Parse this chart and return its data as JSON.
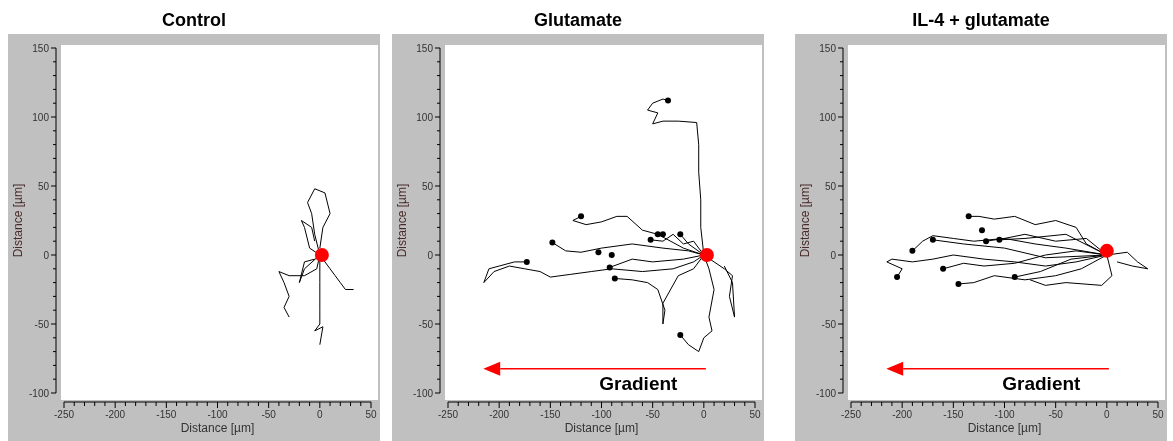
{
  "chart_data": [
    {
      "type": "line",
      "title": "Control",
      "xlabel": "Distance [µm]",
      "ylabel": "Distance [µm]",
      "xlim": [
        -250,
        50
      ],
      "ylim": [
        -100,
        150
      ],
      "grid": false,
      "line_style": "solid",
      "xticks": [
        -250,
        {
          "value": -240,
          "label": null
        },
        {
          "value": -230,
          "label": null
        },
        {
          "value": -220,
          "label": null
        },
        {
          "value": -210,
          "label": null
        },
        -200,
        {
          "value": -190,
          "label": null
        },
        {
          "value": -180,
          "label": null
        },
        {
          "value": -170,
          "label": null
        },
        {
          "value": -160,
          "label": null
        },
        -150,
        {
          "value": -140,
          "label": null
        },
        {
          "value": -130,
          "label": null
        },
        {
          "value": -120,
          "label": null
        },
        {
          "value": -110,
          "label": null
        },
        -100,
        {
          "value": -90,
          "label": null
        },
        {
          "value": -80,
          "label": null
        },
        {
          "value": -70,
          "label": null
        },
        {
          "value": -60,
          "label": null
        },
        -50,
        {
          "value": -40,
          "label": null
        },
        {
          "value": -30,
          "label": null
        },
        {
          "value": -20,
          "label": null
        },
        {
          "value": -10,
          "label": null
        },
        0,
        {
          "value": 10,
          "label": null
        },
        {
          "value": 20,
          "label": null
        },
        {
          "value": 30,
          "label": null
        },
        {
          "value": 40,
          "label": null
        },
        50
      ],
      "yticks": [
        -100,
        {
          "value": -90,
          "label": null
        },
        {
          "value": -80,
          "label": null
        },
        {
          "value": -70,
          "label": null
        },
        {
          "value": -60,
          "label": null
        },
        -50,
        {
          "value": -40,
          "label": null
        },
        {
          "value": -30,
          "label": null
        },
        {
          "value": -20,
          "label": null
        },
        {
          "value": -10,
          "label": null
        },
        0,
        {
          "value": 10,
          "label": null
        },
        {
          "value": 20,
          "label": null
        },
        {
          "value": 30,
          "label": null
        },
        {
          "value": 40,
          "label": null
        },
        50,
        {
          "value": 60,
          "label": null
        },
        {
          "value": 70,
          "label": null
        },
        {
          "value": 80,
          "label": null
        },
        {
          "value": 90,
          "label": null
        },
        100,
        {
          "value": 110,
          "label": null
        },
        {
          "value": 120,
          "label": null
        },
        {
          "value": 130,
          "label": null
        },
        {
          "value": 140,
          "label": null
        },
        150
      ],
      "series": [
        {
          "color": "#000000",
          "x": [
            0,
            -5,
            -8,
            -12,
            -5,
            5,
            10,
            3,
            0
          ],
          "values": [
            0,
            15,
            30,
            38,
            48,
            45,
            30,
            20,
            5
          ]
        },
        {
          "color": "#000000",
          "x": [
            0,
            -3,
            -15,
            -30,
            -40,
            -35,
            -30,
            -35,
            -30
          ],
          "values": [
            0,
            -10,
            -15,
            -15,
            -12,
            -20,
            -30,
            -38,
            -45
          ]
        },
        {
          "color": "#000000",
          "x": [
            0,
            0,
            0,
            0,
            -5,
            3,
            0
          ],
          "values": [
            0,
            -20,
            -40,
            -50,
            -55,
            -52,
            -65
          ]
        },
        {
          "color": "#000000",
          "x": [
            0,
            10,
            15,
            20,
            25,
            33
          ],
          "values": [
            0,
            -10,
            -15,
            -20,
            -25,
            -25
          ]
        },
        {
          "color": "#000000",
          "x": [
            0,
            -10,
            -15,
            -18,
            -8,
            -5
          ],
          "values": [
            0,
            5,
            20,
            25,
            20,
            10
          ]
        },
        {
          "color": "#000000",
          "x": [
            0,
            -15,
            -20,
            -15,
            -5
          ],
          "values": [
            0,
            -10,
            -20,
            -5,
            -3
          ]
        },
        {
          "type": "scatter",
          "marker": "circle",
          "color": "#ff0000",
          "x": [
            2
          ],
          "values": [
            0
          ]
        }
      ]
    },
    {
      "type": "line",
      "title": "Glutamate",
      "xlabel": "Distance [µm]",
      "ylabel": "Distance [µm]",
      "xlim": [
        -250,
        50
      ],
      "ylim": [
        -100,
        150
      ],
      "grid": false,
      "line_style": "solid",
      "annotations": [
        "Gradient"
      ],
      "xticks": [
        -250,
        {
          "value": -240,
          "label": null
        },
        {
          "value": -230,
          "label": null
        },
        {
          "value": -220,
          "label": null
        },
        {
          "value": -210,
          "label": null
        },
        -200,
        {
          "value": -190,
          "label": null
        },
        {
          "value": -180,
          "label": null
        },
        {
          "value": -170,
          "label": null
        },
        {
          "value": -160,
          "label": null
        },
        -150,
        {
          "value": -140,
          "label": null
        },
        {
          "value": -130,
          "label": null
        },
        {
          "value": -120,
          "label": null
        },
        {
          "value": -110,
          "label": null
        },
        -100,
        {
          "value": -90,
          "label": null
        },
        {
          "value": -80,
          "label": null
        },
        {
          "value": -70,
          "label": null
        },
        {
          "value": -60,
          "label": null
        },
        -50,
        {
          "value": -40,
          "label": null
        },
        {
          "value": -30,
          "label": null
        },
        {
          "value": -20,
          "label": null
        },
        {
          "value": -10,
          "label": null
        },
        0,
        {
          "value": 10,
          "label": null
        },
        {
          "value": 20,
          "label": null
        },
        {
          "value": 30,
          "label": null
        },
        {
          "value": 40,
          "label": null
        },
        50
      ],
      "yticks": [
        -100,
        {
          "value": -90,
          "label": null
        },
        {
          "value": -80,
          "label": null
        },
        {
          "value": -70,
          "label": null
        },
        {
          "value": -60,
          "label": null
        },
        -50,
        {
          "value": -40,
          "label": null
        },
        {
          "value": -30,
          "label": null
        },
        {
          "value": -20,
          "label": null
        },
        {
          "value": -10,
          "label": null
        },
        0,
        {
          "value": 10,
          "label": null
        },
        {
          "value": 20,
          "label": null
        },
        {
          "value": 30,
          "label": null
        },
        {
          "value": 40,
          "label": null
        },
        50,
        {
          "value": 60,
          "label": null
        },
        {
          "value": 70,
          "label": null
        },
        {
          "value": 80,
          "label": null
        },
        {
          "value": 90,
          "label": null
        },
        100,
        {
          "value": 110,
          "label": null
        },
        {
          "value": 120,
          "label": null
        },
        {
          "value": 130,
          "label": null
        },
        {
          "value": 140,
          "label": null
        },
        150
      ],
      "series": [
        {
          "color": "#000000",
          "x": [
            0,
            -3,
            -3,
            -5,
            -5,
            -7,
            -25,
            -40,
            -50,
            -45,
            -55,
            -50,
            -40,
            -35
          ],
          "values": [
            0,
            20,
            40,
            60,
            80,
            96,
            97,
            97,
            95,
            103,
            105,
            110,
            113,
            112
          ]
        },
        {
          "color": "#000000",
          "x": [
            0,
            -10,
            -30,
            -60,
            -90,
            -110,
            -130,
            -150,
            -160,
            -175,
            -190,
            -205,
            -215,
            -210,
            -200,
            -185,
            -173
          ],
          "values": [
            0,
            -5,
            -10,
            -12,
            -10,
            -12,
            -14,
            -16,
            -12,
            -10,
            -8,
            -12,
            -20,
            -10,
            -8,
            -5,
            -5
          ]
        },
        {
          "color": "#000000",
          "x": [
            0,
            -20,
            -45,
            -60,
            -75,
            -85,
            -100,
            -115,
            -128,
            -120
          ],
          "values": [
            0,
            5,
            15,
            18,
            28,
            28,
            24,
            22,
            25,
            28
          ]
        },
        {
          "color": "#000000",
          "x": [
            0,
            -15,
            -40,
            -70,
            -100,
            -120,
            -135,
            -148
          ],
          "values": [
            0,
            3,
            5,
            8,
            5,
            2,
            3,
            9
          ]
        },
        {
          "color": "#000000",
          "x": [
            0,
            5,
            10,
            5,
            8,
            0,
            -5,
            -15,
            -23
          ],
          "values": [
            0,
            -10,
            -25,
            -45,
            -55,
            -60,
            -70,
            -65,
            -58
          ]
        },
        {
          "color": "#000000",
          "x": [
            0,
            -10,
            -25,
            -40,
            -40,
            -38,
            -45,
            -55,
            -70,
            -87
          ],
          "values": [
            0,
            -10,
            -15,
            -35,
            -50,
            -40,
            -25,
            -20,
            -18,
            -17
          ]
        },
        {
          "color": "#000000",
          "x": [
            0,
            10,
            20,
            28,
            25,
            30,
            28,
            20
          ],
          "values": [
            0,
            -5,
            -10,
            -15,
            -30,
            -45,
            -20,
            -8
          ]
        },
        {
          "color": "#000000",
          "x": [
            0,
            -10,
            -20,
            -30,
            -40,
            -52
          ],
          "values": [
            0,
            10,
            8,
            15,
            10,
            11
          ]
        },
        {
          "color": "#000000",
          "x": [
            0,
            -20,
            -50,
            -70,
            -92
          ],
          "values": [
            0,
            -3,
            -5,
            -3,
            -9
          ]
        },
        {
          "color": "#000000",
          "x": [
            0,
            -15,
            -23
          ],
          "values": [
            0,
            8,
            15
          ]
        },
        {
          "type": "scatter",
          "marker": "circle",
          "color": "#000000",
          "x": [
            -35,
            -173,
            -120,
            -148,
            -23,
            -87,
            -52,
            -92,
            -23,
            -103,
            -90,
            -45,
            -40
          ],
          "values": [
            112,
            -5,
            28,
            9,
            -58,
            -17,
            11,
            -9,
            15,
            2,
            0,
            15,
            15
          ]
        },
        {
          "type": "scatter",
          "marker": "circle",
          "color": "#ff0000",
          "x": [
            3
          ],
          "values": [
            0
          ]
        }
      ]
    },
    {
      "type": "line",
      "title": "IL-4 + glutamate",
      "xlabel": "Distance [µm]",
      "ylabel": "Distance [µm]",
      "xlim": [
        -250,
        50
      ],
      "ylim": [
        -100,
        150
      ],
      "grid": false,
      "line_style": "solid",
      "annotations": [
        "Gradient"
      ],
      "xticks": [
        -250,
        {
          "value": -240,
          "label": null
        },
        {
          "value": -230,
          "label": null
        },
        {
          "value": -220,
          "label": null
        },
        {
          "value": -210,
          "label": null
        },
        -200,
        {
          "value": -190,
          "label": null
        },
        {
          "value": -180,
          "label": null
        },
        {
          "value": -170,
          "label": null
        },
        {
          "value": -160,
          "label": null
        },
        -150,
        {
          "value": -140,
          "label": null
        },
        {
          "value": -130,
          "label": null
        },
        {
          "value": -120,
          "label": null
        },
        {
          "value": -110,
          "label": null
        },
        -100,
        {
          "value": -90,
          "label": null
        },
        {
          "value": -80,
          "label": null
        },
        {
          "value": -70,
          "label": null
        },
        {
          "value": -60,
          "label": null
        },
        -50,
        {
          "value": -40,
          "label": null
        },
        {
          "value": -30,
          "label": null
        },
        {
          "value": -20,
          "label": null
        },
        {
          "value": -10,
          "label": null
        },
        0,
        {
          "value": 10,
          "label": null
        },
        {
          "value": 20,
          "label": null
        },
        {
          "value": 30,
          "label": null
        },
        {
          "value": 40,
          "label": null
        },
        50
      ],
      "yticks": [
        -100,
        {
          "value": -90,
          "label": null
        },
        {
          "value": -80,
          "label": null
        },
        {
          "value": -70,
          "label": null
        },
        {
          "value": -60,
          "label": null
        },
        -50,
        {
          "value": -40,
          "label": null
        },
        {
          "value": -30,
          "label": null
        },
        {
          "value": -20,
          "label": null
        },
        {
          "value": -10,
          "label": null
        },
        0,
        {
          "value": 10,
          "label": null
        },
        {
          "value": 20,
          "label": null
        },
        {
          "value": 30,
          "label": null
        },
        {
          "value": 40,
          "label": null
        },
        50,
        {
          "value": 60,
          "label": null
        },
        {
          "value": 70,
          "label": null
        },
        {
          "value": 80,
          "label": null
        },
        {
          "value": 90,
          "label": null
        },
        100,
        {
          "value": 110,
          "label": null
        },
        {
          "value": 120,
          "label": null
        },
        {
          "value": 130,
          "label": null
        },
        {
          "value": 140,
          "label": null
        },
        150
      ],
      "series": [
        {
          "color": "#000000",
          "x": [
            0,
            -20,
            -30,
            -50,
            -70,
            -90,
            -110,
            -125,
            -135
          ],
          "values": [
            0,
            8,
            20,
            25,
            22,
            28,
            26,
            28,
            28
          ]
        },
        {
          "color": "#000000",
          "x": [
            0,
            -30,
            -60,
            -90,
            -120,
            -150,
            -170,
            -190,
            -210,
            -215,
            -200,
            -205
          ],
          "values": [
            0,
            -5,
            -8,
            -5,
            -3,
            0,
            -3,
            -5,
            -3,
            -5,
            -10,
            -16
          ]
        },
        {
          "color": "#000000",
          "x": [
            0,
            -25,
            -50,
            -80,
            -110,
            -130,
            -145
          ],
          "values": [
            0,
            -10,
            -15,
            -18,
            -15,
            -20,
            -21
          ]
        },
        {
          "color": "#000000",
          "x": [
            0,
            -40,
            -70,
            -100,
            -130,
            -150,
            -170,
            -180,
            -190
          ],
          "values": [
            0,
            5,
            8,
            12,
            10,
            12,
            14,
            10,
            3
          ]
        },
        {
          "color": "#000000",
          "x": [
            0,
            20,
            30,
            40,
            25,
            10
          ],
          "values": [
            0,
            2,
            -5,
            -10,
            -8,
            -5
          ]
        },
        {
          "color": "#000000",
          "x": [
            0,
            -30,
            -60,
            -90,
            -120,
            -140,
            -160
          ],
          "values": [
            0,
            3,
            0,
            -6,
            -8,
            -6,
            -10
          ]
        },
        {
          "color": "#000000",
          "x": [
            0,
            -20,
            -50,
            -80,
            -100,
            -118
          ],
          "values": [
            0,
            12,
            10,
            15,
            12,
            10
          ]
        },
        {
          "color": "#000000",
          "x": [
            0,
            -35,
            -65,
            -90
          ],
          "values": [
            0,
            -3,
            -12,
            -16
          ]
        },
        {
          "color": "#000000",
          "x": [
            0,
            -40,
            -80,
            -105
          ],
          "values": [
            0,
            15,
            12,
            11
          ]
        },
        {
          "color": "#000000",
          "x": [
            0,
            -60,
            -100,
            -140,
            -170
          ],
          "values": [
            0,
            -2,
            5,
            8,
            11
          ]
        },
        {
          "color": "#000000",
          "x": [
            0,
            5,
            -5,
            -40,
            -60,
            -75
          ],
          "values": [
            0,
            -15,
            -22,
            -20,
            -22,
            -18
          ]
        },
        {
          "type": "scatter",
          "marker": "circle",
          "color": "#000000",
          "x": [
            -135,
            -205,
            -145,
            -190,
            -160,
            -118,
            -90,
            -105,
            -170,
            -122
          ],
          "values": [
            28,
            -16,
            -21,
            3,
            -10,
            10,
            -16,
            11,
            11,
            18
          ]
        },
        {
          "type": "scatter",
          "marker": "circle",
          "color": "#ff0000",
          "x": [
            0
          ],
          "values": [
            3
          ]
        }
      ]
    }
  ]
}
